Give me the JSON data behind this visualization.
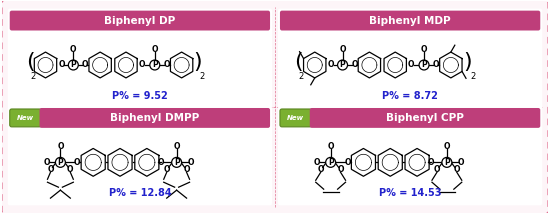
{
  "background_color": "#ffffff",
  "border_color": "#e07090",
  "cell_bg": "#fdf5f8",
  "title_bg": "#be3e7a",
  "title_text_color": "#ffffff",
  "new_badge_bg": "#7ab030",
  "p_value_color": "#2222cc",
  "compounds": [
    {
      "title": "Biphenyl DP",
      "p_value": "P% = 9.52",
      "has_new": false,
      "col": 0,
      "row": 1,
      "structure_type": "DP"
    },
    {
      "title": "Biphenyl MDP",
      "p_value": "P% = 8.72",
      "has_new": false,
      "col": 1,
      "row": 1,
      "structure_type": "MDP"
    },
    {
      "title": "Biphenyl DMPP",
      "p_value": "P% = 12.84",
      "has_new": true,
      "col": 0,
      "row": 0,
      "structure_type": "DMPP"
    },
    {
      "title": "Biphenyl CPP",
      "p_value": "P% = 14.53",
      "has_new": true,
      "col": 1,
      "row": 0,
      "structure_type": "CPP"
    }
  ]
}
